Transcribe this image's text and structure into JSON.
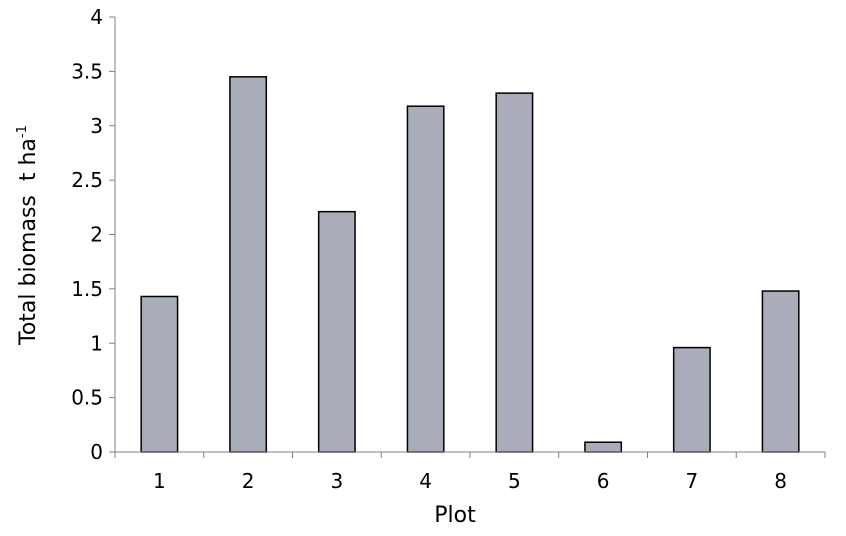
{
  "chart_data": {
    "type": "bar",
    "title": "",
    "xlabel": "Plot",
    "ylabel": "Total biomass  t ha",
    "ylabel_superscript": "-1",
    "categories": [
      "1",
      "2",
      "3",
      "4",
      "5",
      "6",
      "7",
      "8"
    ],
    "values": [
      1.43,
      3.45,
      2.21,
      3.18,
      3.3,
      0.09,
      0.96,
      1.48
    ],
    "yticks": [
      "0",
      "0.5",
      "1",
      "1.5",
      "2",
      "2.5",
      "3",
      "3.5",
      "4"
    ],
    "ylim": [
      0,
      4
    ],
    "grid": false,
    "legend": "none",
    "bar_color": "#a9adb9",
    "bar_edge_color": "#000000"
  }
}
